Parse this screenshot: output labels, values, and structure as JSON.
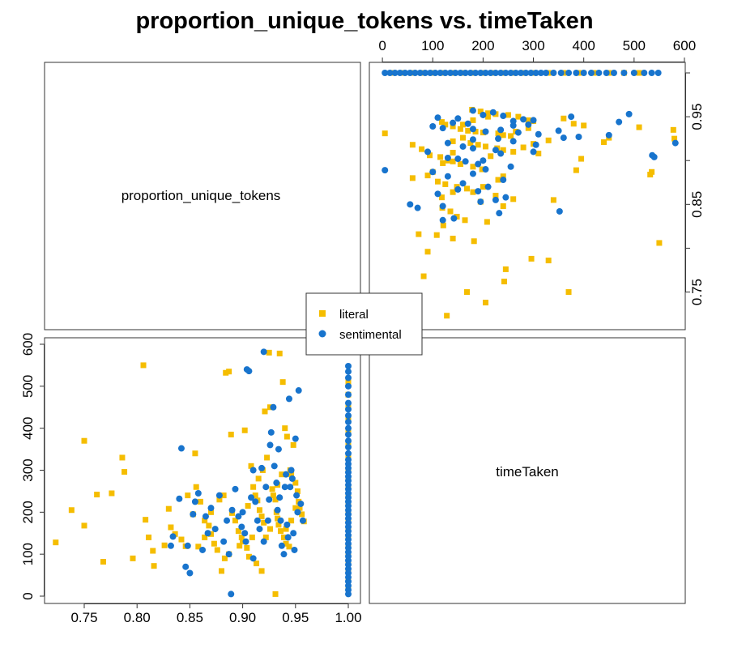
{
  "chart_data": {
    "type": "scatter",
    "title": "proportion_unique_tokens vs. timeTaken",
    "variables": [
      "proportion_unique_tokens",
      "timeTaken"
    ],
    "axes": {
      "proportion_unique_tokens": {
        "range": [
          0.715,
          1.01
        ],
        "ticks": [
          0.75,
          0.8,
          0.85,
          0.9,
          0.95,
          1.0
        ],
        "tick_labels": [
          "0.75",
          "0.80",
          "0.85",
          "0.90",
          "0.95",
          "1.00"
        ]
      },
      "timeTaken": {
        "range": [
          -15,
          600
        ],
        "ticks": [
          0,
          100,
          200,
          300,
          400,
          500,
          600
        ],
        "tick_labels": [
          "0",
          "100",
          "200",
          "300",
          "400",
          "500",
          "600"
        ]
      }
    },
    "legend": {
      "position": "center",
      "entries": [
        {
          "name": "literal",
          "color": "#F5BD00",
          "marker": "square"
        },
        {
          "name": "sentimental",
          "color": "#1874CD",
          "marker": "circle"
        }
      ]
    },
    "series": [
      {
        "name": "literal",
        "color": "#F5BD00",
        "marker": "square",
        "points": [
          [
            0.723,
            128
          ],
          [
            0.738,
            205
          ],
          [
            0.75,
            370
          ],
          [
            0.75,
            168
          ],
          [
            0.762,
            242
          ],
          [
            0.768,
            82
          ],
          [
            0.776,
            245
          ],
          [
            0.786,
            330
          ],
          [
            0.788,
            296
          ],
          [
            0.796,
            90
          ],
          [
            0.806,
            550
          ],
          [
            0.808,
            182
          ],
          [
            0.811,
            140
          ],
          [
            0.815,
            108
          ],
          [
            0.816,
            72
          ],
          [
            0.826,
            121
          ],
          [
            0.83,
            208
          ],
          [
            0.832,
            164
          ],
          [
            0.836,
            148
          ],
          [
            0.842,
            135
          ],
          [
            0.846,
            119
          ],
          [
            0.848,
            240
          ],
          [
            0.853,
            195
          ],
          [
            0.855,
            340
          ],
          [
            0.856,
            260
          ],
          [
            0.86,
            225
          ],
          [
            0.864,
            180
          ],
          [
            0.868,
            168
          ],
          [
            0.87,
            148
          ],
          [
            0.873,
            125
          ],
          [
            0.876,
            110
          ],
          [
            0.88,
            60
          ],
          [
            0.882,
            240
          ],
          [
            0.884,
            532
          ],
          [
            0.887,
            535
          ],
          [
            0.889,
            385
          ],
          [
            0.89,
            198
          ],
          [
            0.893,
            180
          ],
          [
            0.896,
            155
          ],
          [
            0.899,
            140
          ],
          [
            0.902,
            395
          ],
          [
            0.905,
            215
          ],
          [
            0.908,
            310
          ],
          [
            0.91,
            260
          ],
          [
            0.912,
            240
          ],
          [
            0.914,
            228
          ],
          [
            0.916,
            205
          ],
          [
            0.918,
            190
          ],
          [
            0.92,
            175
          ],
          [
            0.921,
            440
          ],
          [
            0.923,
            330
          ],
          [
            0.925,
            580
          ],
          [
            0.926,
            450
          ],
          [
            0.928,
            255
          ],
          [
            0.929,
            240
          ],
          [
            0.931,
            230
          ],
          [
            0.932,
            200
          ],
          [
            0.933,
            185
          ],
          [
            0.934,
            170
          ],
          [
            0.935,
            578
          ],
          [
            0.936,
            155
          ],
          [
            0.938,
            510
          ],
          [
            0.939,
            140
          ],
          [
            0.94,
            400
          ],
          [
            0.941,
            125
          ],
          [
            0.942,
            380
          ],
          [
            0.944,
            118
          ],
          [
            0.945,
            300
          ],
          [
            0.946,
            290
          ],
          [
            0.948,
            360
          ],
          [
            0.95,
            270
          ],
          [
            0.952,
            250
          ],
          [
            0.953,
            225
          ],
          [
            0.954,
            210
          ],
          [
            0.956,
            195
          ],
          [
            0.958,
            178
          ],
          [
            0.906,
            94
          ],
          [
            0.913,
            78
          ],
          [
            0.918,
            60
          ],
          [
            0.931,
            5
          ],
          [
            0.9,
            130
          ],
          [
            0.904,
            115
          ],
          [
            0.887,
            100
          ],
          [
            0.883,
            90
          ],
          [
            0.922,
            140
          ],
          [
            0.926,
            160
          ],
          [
            0.941,
            160
          ],
          [
            0.946,
            180
          ],
          [
            0.95,
            210
          ],
          [
            0.937,
            290
          ],
          [
            0.933,
            265
          ],
          [
            0.919,
            300
          ],
          [
            0.915,
            280
          ],
          [
            0.909,
            140
          ],
          [
            0.897,
            120
          ],
          [
            0.87,
            200
          ],
          [
            0.878,
            230
          ],
          [
            0.864,
            140
          ],
          [
            0.858,
            118
          ],
          [
            1.0,
            20
          ],
          [
            1.0,
            40
          ],
          [
            1.0,
            60
          ],
          [
            1.0,
            80
          ],
          [
            1.0,
            100
          ],
          [
            1.0,
            120
          ],
          [
            1.0,
            140
          ],
          [
            1.0,
            160
          ],
          [
            1.0,
            180
          ],
          [
            1.0,
            200
          ],
          [
            1.0,
            220
          ],
          [
            1.0,
            240
          ],
          [
            1.0,
            260
          ],
          [
            1.0,
            280
          ],
          [
            1.0,
            300
          ],
          [
            1.0,
            330
          ],
          [
            1.0,
            360
          ],
          [
            1.0,
            390
          ],
          [
            1.0,
            420
          ],
          [
            1.0,
            450
          ],
          [
            1.0,
            480
          ],
          [
            1.0,
            510
          ]
        ]
      },
      {
        "name": "sentimental",
        "color": "#1874CD",
        "marker": "circle",
        "points": [
          [
            0.832,
            120
          ],
          [
            0.834,
            142
          ],
          [
            0.84,
            232
          ],
          [
            0.842,
            352
          ],
          [
            0.846,
            70
          ],
          [
            0.848,
            120
          ],
          [
            0.85,
            55
          ],
          [
            0.853,
            195
          ],
          [
            0.855,
            225
          ],
          [
            0.858,
            245
          ],
          [
            0.862,
            110
          ],
          [
            0.865,
            190
          ],
          [
            0.867,
            150
          ],
          [
            0.87,
            210
          ],
          [
            0.874,
            160
          ],
          [
            0.878,
            240
          ],
          [
            0.882,
            130
          ],
          [
            0.885,
            180
          ],
          [
            0.887,
            100
          ],
          [
            0.889,
            5
          ],
          [
            0.89,
            205
          ],
          [
            0.893,
            255
          ],
          [
            0.896,
            190
          ],
          [
            0.899,
            165
          ],
          [
            0.902,
            150
          ],
          [
            0.904,
            540
          ],
          [
            0.906,
            536
          ],
          [
            0.908,
            235
          ],
          [
            0.91,
            300
          ],
          [
            0.912,
            225
          ],
          [
            0.914,
            180
          ],
          [
            0.916,
            160
          ],
          [
            0.918,
            305
          ],
          [
            0.92,
            582
          ],
          [
            0.922,
            260
          ],
          [
            0.924,
            180
          ],
          [
            0.926,
            360
          ],
          [
            0.927,
            390
          ],
          [
            0.929,
            450
          ],
          [
            0.93,
            310
          ],
          [
            0.932,
            270
          ],
          [
            0.933,
            205
          ],
          [
            0.935,
            235
          ],
          [
            0.936,
            180
          ],
          [
            0.937,
            120
          ],
          [
            0.939,
            100
          ],
          [
            0.94,
            260
          ],
          [
            0.941,
            290
          ],
          [
            0.942,
            170
          ],
          [
            0.943,
            140
          ],
          [
            0.944,
            470
          ],
          [
            0.946,
            300
          ],
          [
            0.947,
            280
          ],
          [
            0.948,
            150
          ],
          [
            0.949,
            110
          ],
          [
            0.95,
            375
          ],
          [
            0.951,
            240
          ],
          [
            0.952,
            200
          ],
          [
            0.953,
            490
          ],
          [
            0.955,
            220
          ],
          [
            0.957,
            180
          ],
          [
            0.9,
            200
          ],
          [
            0.903,
            130
          ],
          [
            0.91,
            90
          ],
          [
            0.92,
            130
          ],
          [
            0.925,
            230
          ],
          [
            0.934,
            350
          ],
          [
            0.945,
            260
          ],
          [
            1.0,
            5
          ],
          [
            1.0,
            15
          ],
          [
            1.0,
            25
          ],
          [
            1.0,
            35
          ],
          [
            1.0,
            45
          ],
          [
            1.0,
            55
          ],
          [
            1.0,
            65
          ],
          [
            1.0,
            75
          ],
          [
            1.0,
            85
          ],
          [
            1.0,
            95
          ],
          [
            1.0,
            105
          ],
          [
            1.0,
            115
          ],
          [
            1.0,
            125
          ],
          [
            1.0,
            135
          ],
          [
            1.0,
            145
          ],
          [
            1.0,
            155
          ],
          [
            1.0,
            165
          ],
          [
            1.0,
            175
          ],
          [
            1.0,
            185
          ],
          [
            1.0,
            195
          ],
          [
            1.0,
            205
          ],
          [
            1.0,
            215
          ],
          [
            1.0,
            225
          ],
          [
            1.0,
            235
          ],
          [
            1.0,
            245
          ],
          [
            1.0,
            255
          ],
          [
            1.0,
            265
          ],
          [
            1.0,
            275
          ],
          [
            1.0,
            285
          ],
          [
            1.0,
            295
          ],
          [
            1.0,
            305
          ],
          [
            1.0,
            315
          ],
          [
            1.0,
            325
          ],
          [
            1.0,
            340
          ],
          [
            1.0,
            355
          ],
          [
            1.0,
            370
          ],
          [
            1.0,
            385
          ],
          [
            1.0,
            400
          ],
          [
            1.0,
            415
          ],
          [
            1.0,
            430
          ],
          [
            1.0,
            445
          ],
          [
            1.0,
            460
          ],
          [
            1.0,
            480
          ],
          [
            1.0,
            500
          ],
          [
            1.0,
            520
          ],
          [
            1.0,
            535
          ],
          [
            1.0,
            548
          ]
        ]
      }
    ]
  }
}
